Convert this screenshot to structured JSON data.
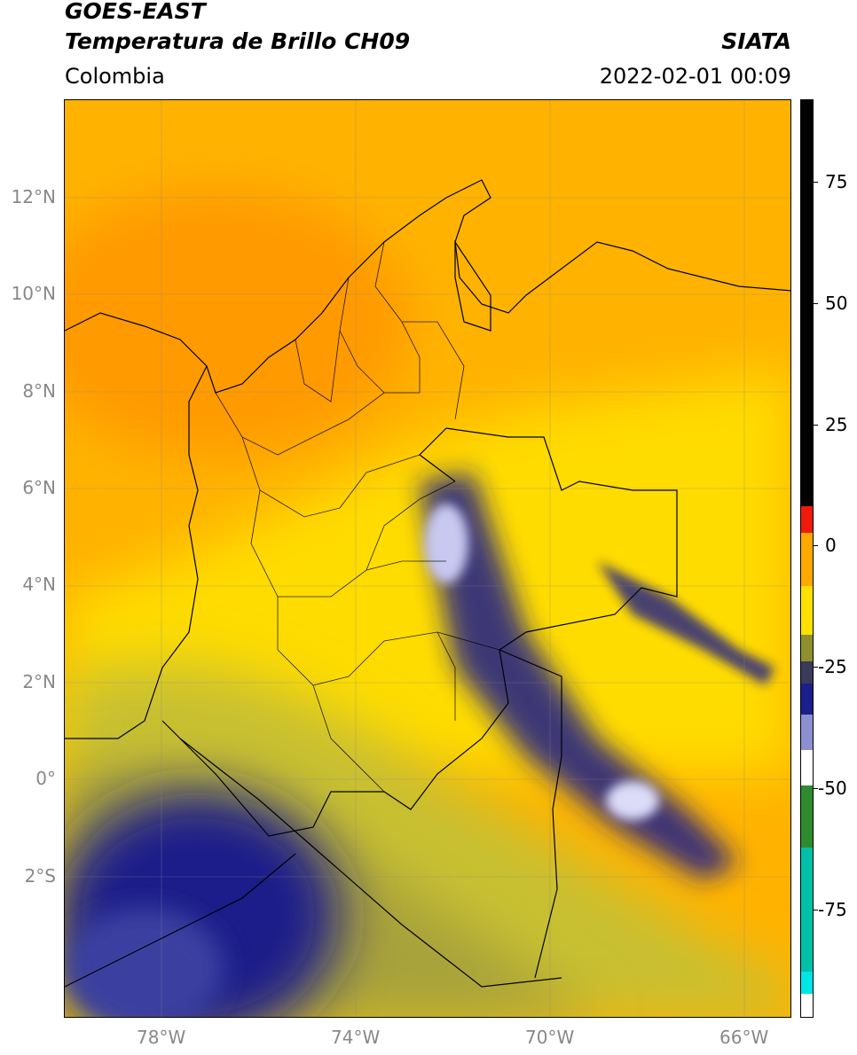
{
  "header": {
    "title_line1": "GOES-EAST",
    "title_line2": "Temperatura de Brillo CH09",
    "brand": "SIATA",
    "region": "Colombia",
    "datetime": "2022-02-01 00:09"
  },
  "map": {
    "lon_ticks": [
      {
        "label": "78°W",
        "value": -78
      },
      {
        "label": "74°W",
        "value": -74
      },
      {
        "label": "70°W",
        "value": -70
      },
      {
        "label": "66°W",
        "value": -66
      }
    ],
    "lat_ticks": [
      {
        "label": "12°N",
        "value": 12
      },
      {
        "label": "10°N",
        "value": 10
      },
      {
        "label": "8°N",
        "value": 8
      },
      {
        "label": "6°N",
        "value": 6
      },
      {
        "label": "4°N",
        "value": 4
      },
      {
        "label": "2°N",
        "value": 2
      },
      {
        "label": "0°",
        "value": 0
      },
      {
        "label": "2°S",
        "value": -2
      }
    ],
    "lon_range": [
      -80,
      -65
    ],
    "lat_range": [
      -4.3,
      14.1
    ]
  },
  "colorbar": {
    "range": [
      -95,
      90
    ],
    "ticks": [
      {
        "label": "75",
        "value": 75
      },
      {
        "label": "50",
        "value": 50
      },
      {
        "label": "25",
        "value": 25
      },
      {
        "label": "0",
        "value": 0
      },
      {
        "label": "-25",
        "value": -25
      },
      {
        "label": "-50",
        "value": -50
      },
      {
        "label": "-75",
        "value": -75
      }
    ],
    "colors": {
      "black": "#000000",
      "red": "#f01a0a",
      "orange": "#ffa800",
      "yellow": "#ffe100",
      "olive": "#8f8f30",
      "navy": "#1a1f8a",
      "white": "#ffffff",
      "green": "#2e8b2e",
      "cyan": "#00e5e5"
    }
  }
}
